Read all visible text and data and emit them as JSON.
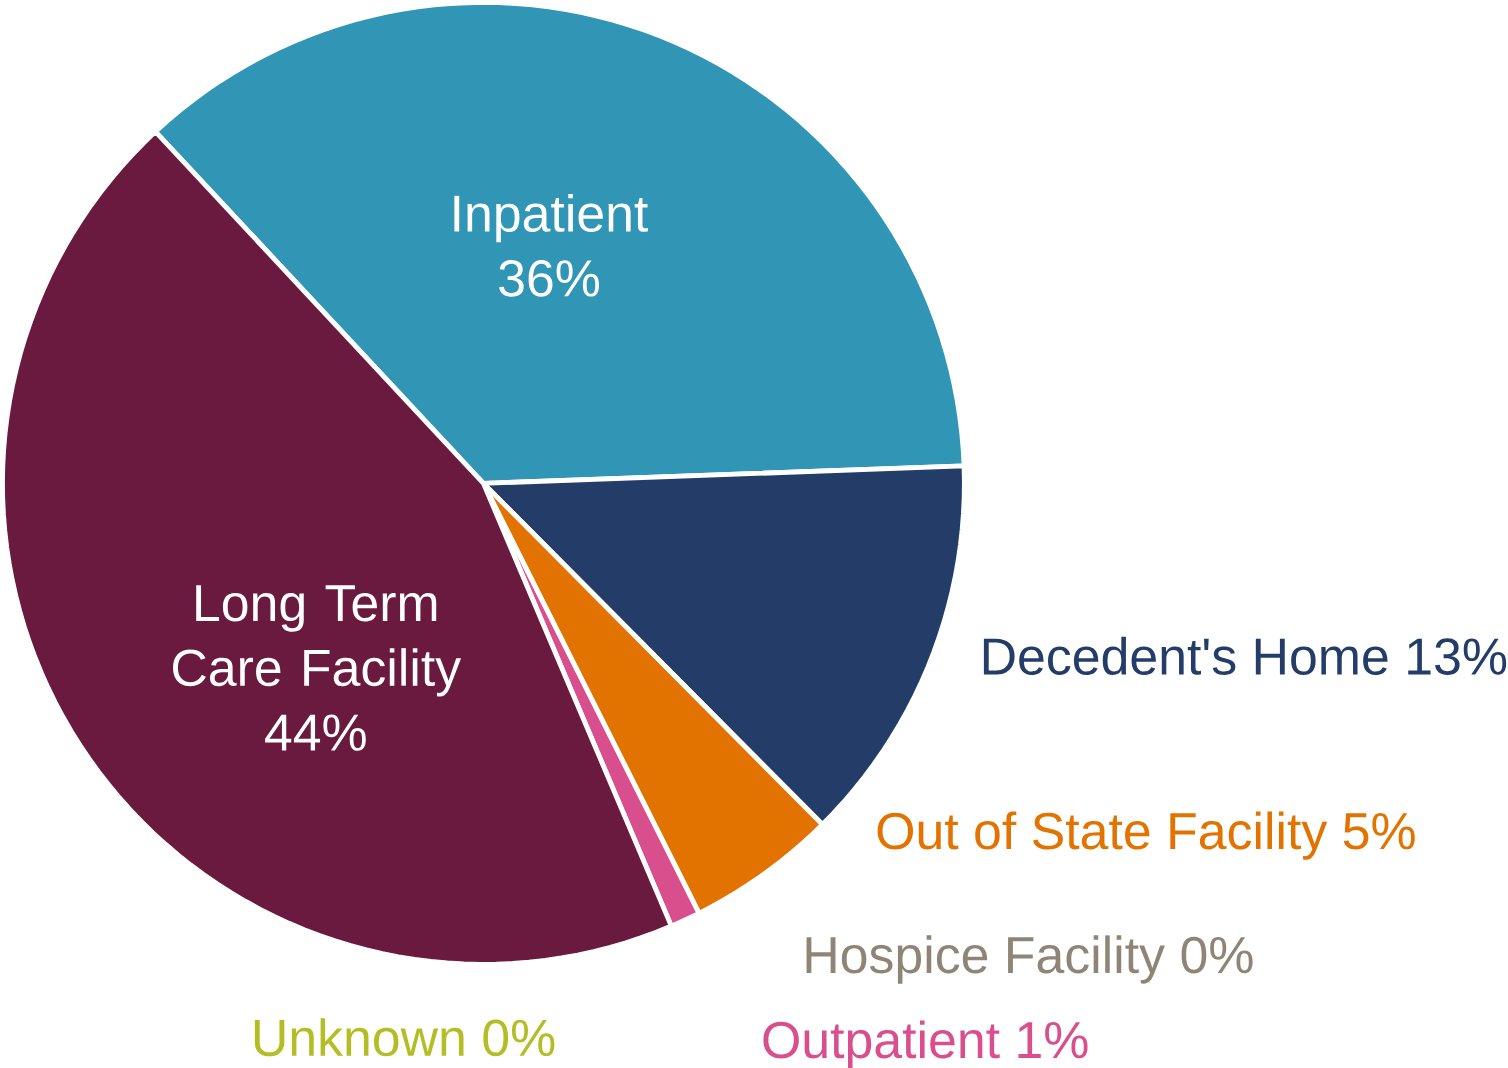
{
  "chart_data": {
    "type": "pie",
    "categories": [
      "Inpatient",
      "Decedent's Home",
      "Out of State Facility",
      "Hospice Facility",
      "Outpatient",
      "Unknown",
      "Long Term Care Facility"
    ],
    "values": [
      36,
      13,
      5,
      0,
      1,
      0,
      44
    ],
    "value_labels": [
      "36%",
      "13%",
      "5%",
      "0%",
      "1%",
      "0%",
      "44%"
    ],
    "colors": [
      "#3196b5",
      "#233c68",
      "#e37300",
      "#8f8577",
      "#d94f8e",
      "#b5bd25",
      "#6b1a3f"
    ]
  }
}
